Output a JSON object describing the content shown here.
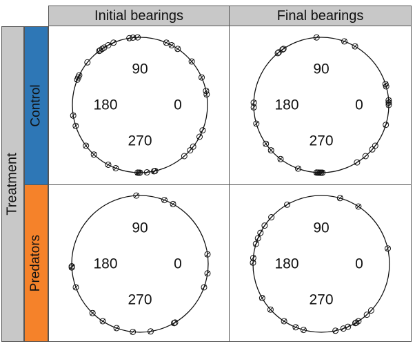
{
  "chart_data": {
    "type": "scatter",
    "projection": "circular",
    "facet_rows_title": "Treatment",
    "columns": [
      "Initial bearings",
      "Final bearings"
    ],
    "rows": [
      "Control",
      "Predators"
    ],
    "row_colors": [
      "#2e77b6",
      "#f5822a"
    ],
    "strip_color": "#c8c8c8",
    "degree_labels": [
      "90",
      "180",
      "0",
      "270"
    ],
    "panels": [
      {
        "row": "Control",
        "column": "Initial bearings",
        "bearings_deg": [
          92,
          96,
          99,
          113,
          124,
          62,
          67,
          56,
          40,
          24,
          12,
          9,
          338,
          332,
          322,
          318,
          311,
          282,
          283,
          276,
          270,
          269,
          268,
          249,
          242,
          227,
          217,
          198,
          189,
          156,
          158,
          154,
          141,
          126,
          127,
          122,
          118
        ]
      },
      {
        "row": "Control",
        "column": "Final bearings",
        "bearings_deg": [
          94,
          70,
          60,
          125,
          129,
          130,
          124,
          16,
          18,
          4,
          2,
          0,
          343,
          323,
          319,
          311,
          302,
          271,
          270,
          269,
          268,
          267,
          266,
          250,
          233,
          222,
          215,
          196,
          182,
          178
        ]
      },
      {
        "row": "Predators",
        "column": "Initial bearings",
        "bearings_deg": [
          93,
          69,
          61,
          8,
          352,
          340,
          301,
          300,
          279,
          264,
          250,
          237,
          226,
          183,
          182,
          200
        ]
      },
      {
        "row": "Predators",
        "column": "Final bearings",
        "bearings_deg": [
          120,
          74,
          57,
          146,
          153,
          158,
          163,
          175,
          179,
          13,
          317,
          312,
          303,
          301,
          300,
          293,
          289,
          282,
          255,
          248,
          237,
          222,
          210,
          137
        ]
      }
    ]
  }
}
